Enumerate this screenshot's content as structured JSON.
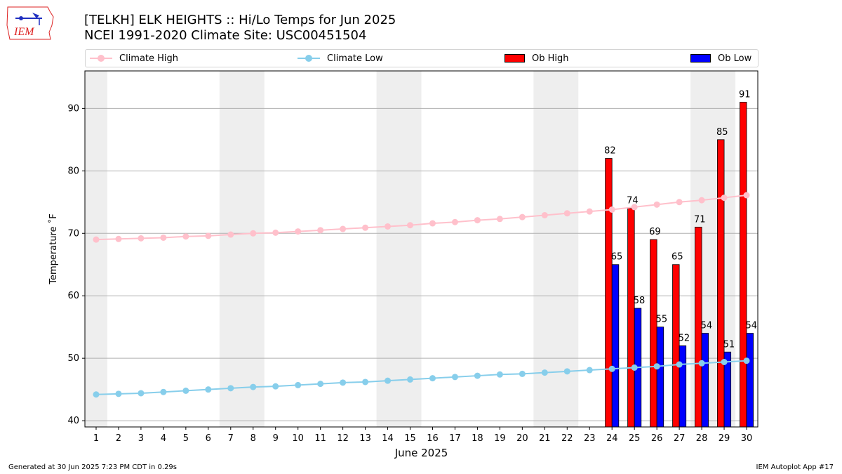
{
  "logo": {
    "text": "IEM"
  },
  "title": {
    "line1": "[TELKH] ELK HEIGHTS  :: Hi/Lo Temps for Jun 2025",
    "line2": "NCEI 1991-2020 Climate Site: USC00451504"
  },
  "legend": {
    "climate_high": "Climate High",
    "climate_low": "Climate Low",
    "ob_high": "Ob High",
    "ob_low": "Ob Low"
  },
  "colors": {
    "climate_high": "#ffc0cb",
    "climate_low": "#87ceeb",
    "ob_high": "#ff0000",
    "ob_low": "#0000ff",
    "weekend_band": "#eeeeee",
    "grid": "#b0b0b0"
  },
  "footer": {
    "left": "Generated at 30 Jun 2025 7:23 PM CDT in 0.29s",
    "right": "IEM Autoplot App #17"
  },
  "chart_data": {
    "type": "bar",
    "xlabel": "June 2025",
    "ylabel": "Temperature $^\\circ$F",
    "ylim": [
      39,
      96
    ],
    "xlim": [
      0.5,
      30.5
    ],
    "yticks": [
      40,
      50,
      60,
      70,
      80,
      90
    ],
    "x": [
      1,
      2,
      3,
      4,
      5,
      6,
      7,
      8,
      9,
      10,
      11,
      12,
      13,
      14,
      15,
      16,
      17,
      18,
      19,
      20,
      21,
      22,
      23,
      24,
      25,
      26,
      27,
      28,
      29,
      30
    ],
    "grid": "horizontal",
    "legend_position": "top",
    "weekend_bands": [
      [
        0.5,
        1.5
      ],
      [
        6.5,
        8.5
      ],
      [
        13.5,
        15.5
      ],
      [
        20.5,
        22.5
      ],
      [
        27.5,
        29.5
      ]
    ],
    "series": [
      {
        "name": "Climate High",
        "kind": "line",
        "values": [
          69.0,
          69.1,
          69.2,
          69.3,
          69.5,
          69.6,
          69.8,
          70.0,
          70.1,
          70.3,
          70.5,
          70.7,
          70.9,
          71.1,
          71.3,
          71.6,
          71.8,
          72.1,
          72.3,
          72.6,
          72.9,
          73.2,
          73.5,
          73.8,
          74.2,
          74.6,
          75.0,
          75.3,
          75.7,
          76.1
        ]
      },
      {
        "name": "Climate Low",
        "kind": "line",
        "values": [
          44.2,
          44.3,
          44.4,
          44.6,
          44.8,
          45.0,
          45.2,
          45.4,
          45.5,
          45.7,
          45.9,
          46.1,
          46.2,
          46.4,
          46.6,
          46.8,
          47.0,
          47.2,
          47.4,
          47.5,
          47.7,
          47.9,
          48.1,
          48.3,
          48.5,
          48.7,
          49.0,
          49.2,
          49.4,
          49.6
        ]
      },
      {
        "name": "Ob High",
        "kind": "bar",
        "points": [
          {
            "x": 24,
            "value": 82
          },
          {
            "x": 25,
            "value": 74
          },
          {
            "x": 26,
            "value": 69
          },
          {
            "x": 27,
            "value": 65
          },
          {
            "x": 28,
            "value": 71
          },
          {
            "x": 29,
            "value": 85
          },
          {
            "x": 30,
            "value": 91
          }
        ]
      },
      {
        "name": "Ob Low",
        "kind": "bar",
        "points": [
          {
            "x": 24,
            "value": 65
          },
          {
            "x": 25,
            "value": 58
          },
          {
            "x": 26,
            "value": 55
          },
          {
            "x": 27,
            "value": 52
          },
          {
            "x": 28,
            "value": 54
          },
          {
            "x": 29,
            "value": 51
          },
          {
            "x": 30,
            "value": 54
          }
        ]
      }
    ]
  }
}
